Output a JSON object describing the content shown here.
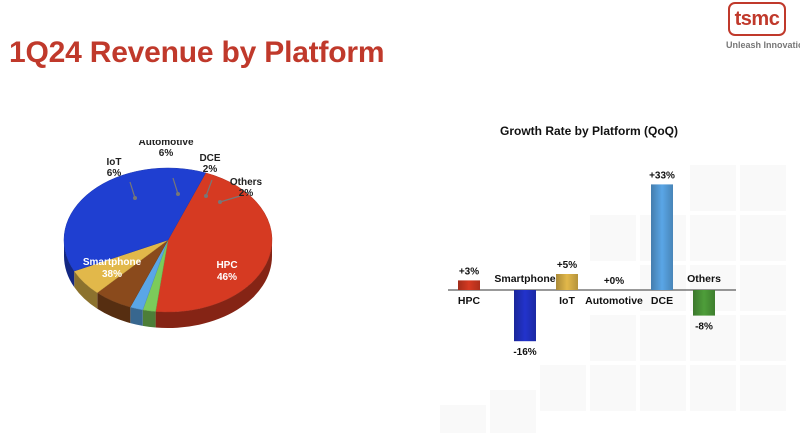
{
  "title": "1Q24 Revenue by Platform",
  "logo": {
    "text": "tsmc",
    "tagline": "Unleash Innovatio"
  },
  "colors": {
    "title": "#c0392b",
    "brand": "#c0392b"
  },
  "chart_data": [
    {
      "type": "pie",
      "title": "",
      "slices": [
        {
          "label": "HPC",
          "value": 46,
          "value_label": "46%",
          "color": "#d63a22"
        },
        {
          "label": "Others",
          "value": 2,
          "value_label": "2%",
          "color": "#7ccb5a"
        },
        {
          "label": "DCE",
          "value": 2,
          "value_label": "2%",
          "color": "#5aa6e6"
        },
        {
          "label": "Automotive",
          "value": 6,
          "value_label": "6%",
          "color": "#8a4a1c"
        },
        {
          "label": "IoT",
          "value": 6,
          "value_label": "6%",
          "color": "#e2b84a"
        },
        {
          "label": "Smartphone",
          "value": 38,
          "value_label": "38%",
          "color": "#1f3fd1"
        }
      ]
    },
    {
      "type": "bar",
      "title": "Growth Rate by Platform (QoQ)",
      "categories": [
        "HPC",
        "Smartphone",
        "IoT",
        "Automotive",
        "DCE",
        "Others"
      ],
      "values": [
        3,
        -16,
        5,
        0,
        33,
        -8
      ],
      "value_labels": [
        "+3%",
        "-16%",
        "+5%",
        "+0%",
        "+33%",
        "-8%"
      ],
      "colors": [
        "#d63a22",
        "#2233cc",
        "#e2b84a",
        "#8a4a1c",
        "#5aa6e6",
        "#4e9e3a"
      ],
      "ylim": [
        -16,
        33
      ],
      "grid": false,
      "legend": "none"
    }
  ]
}
